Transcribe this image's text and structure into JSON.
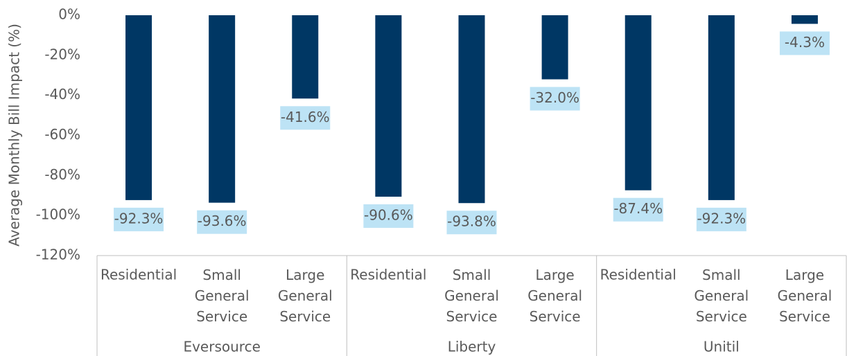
{
  "chart_data": {
    "type": "bar",
    "y_label": "Average Monthly Bill Impact (%)",
    "categories": [
      "Residential",
      "Small General Service",
      "Large General Service",
      "Residential",
      "Small General Service",
      "Large General Service",
      "Residential",
      "Small General Service",
      "Large General Service"
    ],
    "groups": [
      "Eversource",
      "Liberty",
      "Unitil"
    ],
    "values": [
      -92.3,
      -93.6,
      -41.6,
      -90.6,
      -93.8,
      -32.0,
      -87.4,
      -92.3,
      -4.3
    ],
    "value_labels": [
      "-92.3%",
      "-93.6%",
      "-41.6%",
      "-90.6%",
      "-93.8%",
      "-32.0%",
      "-87.4%",
      "-92.3%",
      "-4.3%"
    ],
    "color": "#003764",
    "label_color": "#bde3f5",
    "ylim": [
      -120,
      0
    ],
    "yticks": [
      {
        "value": 0,
        "label": "0%"
      },
      {
        "value": -20,
        "label": "-20%"
      },
      {
        "value": -40,
        "label": "-40%"
      },
      {
        "value": -60,
        "label": "-60%"
      },
      {
        "value": -80,
        "label": "-80%"
      },
      {
        "value": -100,
        "label": "-100%"
      },
      {
        "value": -120,
        "label": "-120%"
      }
    ]
  }
}
